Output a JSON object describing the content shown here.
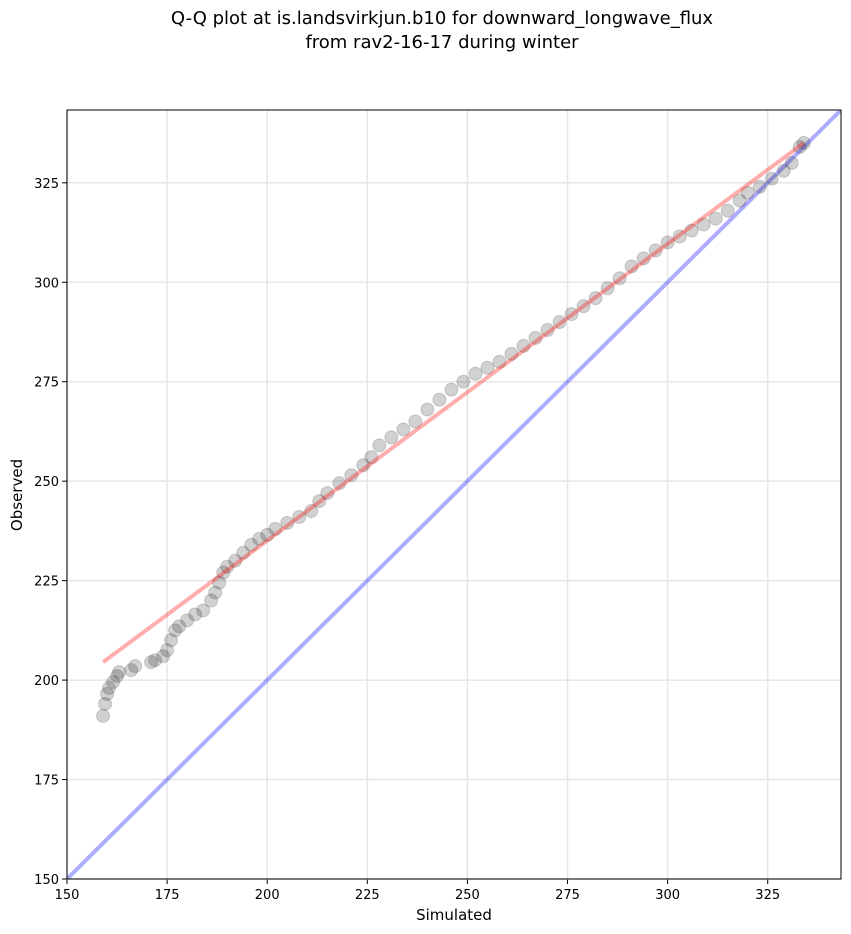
{
  "chart_data": {
    "type": "scatter",
    "title": [
      "Q-Q plot at is.landsvirkjun.b10 for downward_longwave_flux",
      "from rav2-16-17 during winter"
    ],
    "x_label": "Simulated",
    "y_label": "Observed",
    "xlim": [
      150,
      343.3
    ],
    "ylim": [
      150,
      343.3
    ],
    "xticks": [
      150,
      175,
      200,
      225,
      250,
      275,
      300,
      325
    ],
    "yticks": [
      150,
      175,
      200,
      225,
      250,
      275,
      300,
      325
    ],
    "grid": true,
    "points": {
      "color": "#000000",
      "x": [
        159,
        159.5,
        160,
        160.5,
        161.5,
        162.5,
        163,
        166,
        167,
        171,
        172,
        174,
        175,
        176,
        177,
        178,
        180,
        182,
        184,
        186,
        187,
        188,
        189,
        190,
        192,
        194,
        196,
        198,
        200,
        202,
        205,
        208,
        211,
        213,
        215,
        218,
        221,
        224,
        226,
        228,
        231,
        234,
        237,
        240,
        243,
        246,
        249,
        252,
        255,
        258,
        261,
        264,
        267,
        270,
        273,
        276,
        279,
        282,
        285,
        288,
        291,
        294,
        297,
        300,
        303,
        306,
        309,
        312,
        315,
        318,
        320,
        323,
        326,
        329,
        331,
        333,
        334
      ],
      "y": [
        191,
        194,
        196.5,
        198,
        199.5,
        201,
        202,
        202.5,
        203.5,
        204.5,
        205,
        206,
        207.5,
        210,
        212.5,
        213.5,
        215,
        216.5,
        217.5,
        220,
        222,
        224.5,
        227,
        228.5,
        230,
        232,
        234,
        235.5,
        236.5,
        238,
        239.5,
        241,
        242.5,
        245,
        247,
        249.5,
        251.5,
        254,
        256,
        259,
        261,
        263,
        265,
        268,
        270.5,
        273,
        275,
        277,
        278.5,
        280,
        282,
        284,
        286,
        288,
        290,
        292,
        294,
        296,
        298.5,
        301,
        304,
        306,
        308,
        310,
        311.5,
        313,
        314.5,
        316,
        318,
        320.5,
        322.5,
        324,
        326,
        328,
        330,
        334,
        335
      ]
    },
    "reference_line": {
      "color": "#0000ff",
      "x": [
        150,
        343.3
      ],
      "y": [
        150,
        343.3
      ]
    },
    "fit_line": {
      "color": "#ff0000",
      "x": [
        159,
        334
      ],
      "y": [
        204.5,
        335
      ]
    }
  }
}
